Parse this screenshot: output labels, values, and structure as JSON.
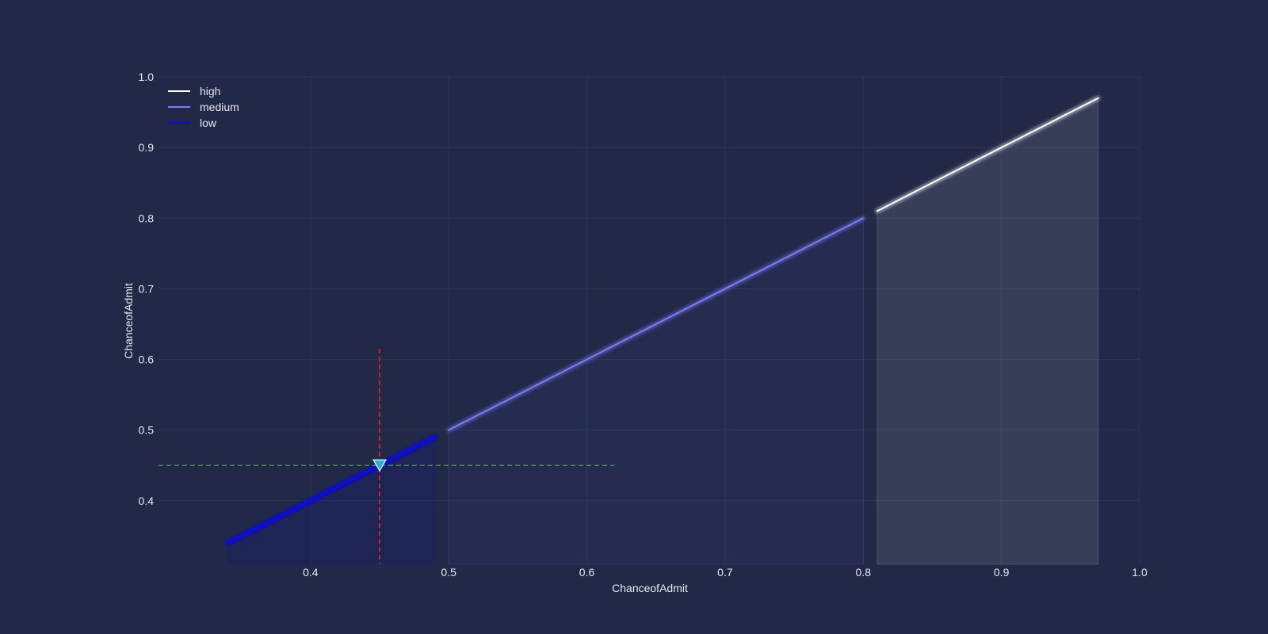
{
  "chart_data": {
    "type": "line",
    "xlabel": "ChanceofAdmit",
    "ylabel": "ChanceofAdmit",
    "xlim": [
      0.29,
      1.0
    ],
    "ylim": [
      0.31,
      1.0
    ],
    "x_ticks": [
      "0.4",
      "0.5",
      "0.6",
      "0.7",
      "0.8",
      "0.9",
      "1.0"
    ],
    "y_ticks": [
      "0.4",
      "0.5",
      "0.6",
      "0.7",
      "0.8",
      "0.9",
      "1.0"
    ],
    "grid": true,
    "legend_position": "top-left",
    "series": [
      {
        "name": "high",
        "color": "#ffffff",
        "x": [
          0.81,
          0.97
        ],
        "y": [
          0.81,
          0.97
        ],
        "filled": true
      },
      {
        "name": "medium",
        "color": "#7b7bff",
        "x": [
          0.5,
          0.8
        ],
        "y": [
          0.5,
          0.8
        ],
        "filled": true
      },
      {
        "name": "low",
        "color": "#0a0adf",
        "x": [
          0.34,
          0.49
        ],
        "y": [
          0.34,
          0.49
        ],
        "filled": true
      }
    ],
    "marker": {
      "x": 0.45,
      "y": 0.45,
      "shape": "triangle-down",
      "color": "#1fb6d8"
    },
    "reference_lines": [
      {
        "orientation": "vertical",
        "value": 0.45,
        "from": 0.31,
        "to": 0.615,
        "color": "#ff2020",
        "style": "dashed"
      },
      {
        "orientation": "horizontal",
        "value": 0.45,
        "from": 0.29,
        "to": 0.62,
        "color": "#2a9a2a",
        "style": "dashed"
      }
    ]
  }
}
